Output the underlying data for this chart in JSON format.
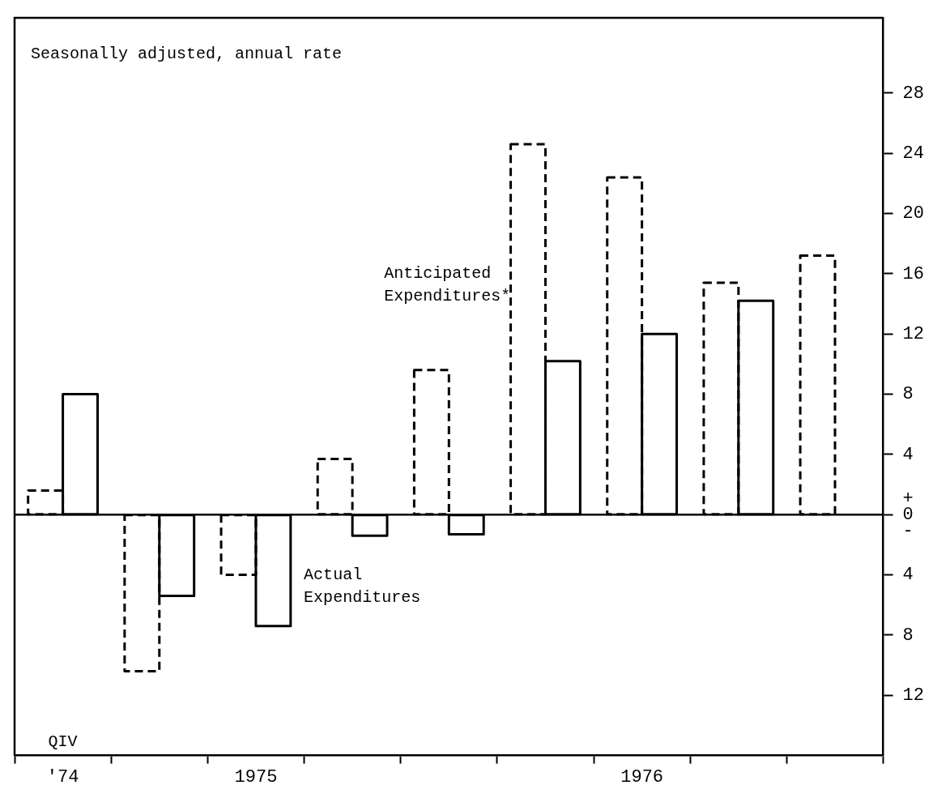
{
  "chart_data": {
    "type": "bar",
    "categories": [
      "'74",
      null,
      "1975",
      null,
      null,
      null,
      "1976",
      null,
      null
    ],
    "series": [
      {
        "name": "Anticipated Expenditures*",
        "color": "#000000",
        "line_style": "dashed",
        "values": [
          1.6,
          -10.4,
          -4.0,
          3.7,
          9.6,
          24.6,
          22.4,
          15.4,
          17.2
        ]
      },
      {
        "name": "Actual Expenditures",
        "color": "#000000",
        "line_style": "solid",
        "values": [
          8.0,
          -5.4,
          -7.4,
          -1.4,
          -1.3,
          10.2,
          12.0,
          14.2,
          null
        ]
      }
    ],
    "ylim": [
      -16,
      33
    ],
    "yticks": [
      {
        "value": -12,
        "label": "12"
      },
      {
        "value": -8,
        "label": "8"
      },
      {
        "value": -4,
        "label": "4"
      },
      {
        "value": 0,
        "label": "+\n0\n-"
      },
      4,
      8,
      12,
      16,
      20,
      24,
      28
    ],
    "ref_lines": [
      {
        "axis": "y",
        "value": 0
      }
    ],
    "annotations": [
      "Seasonally adjusted, annual rate",
      "QIV"
    ],
    "grid": false,
    "legend": false
  }
}
